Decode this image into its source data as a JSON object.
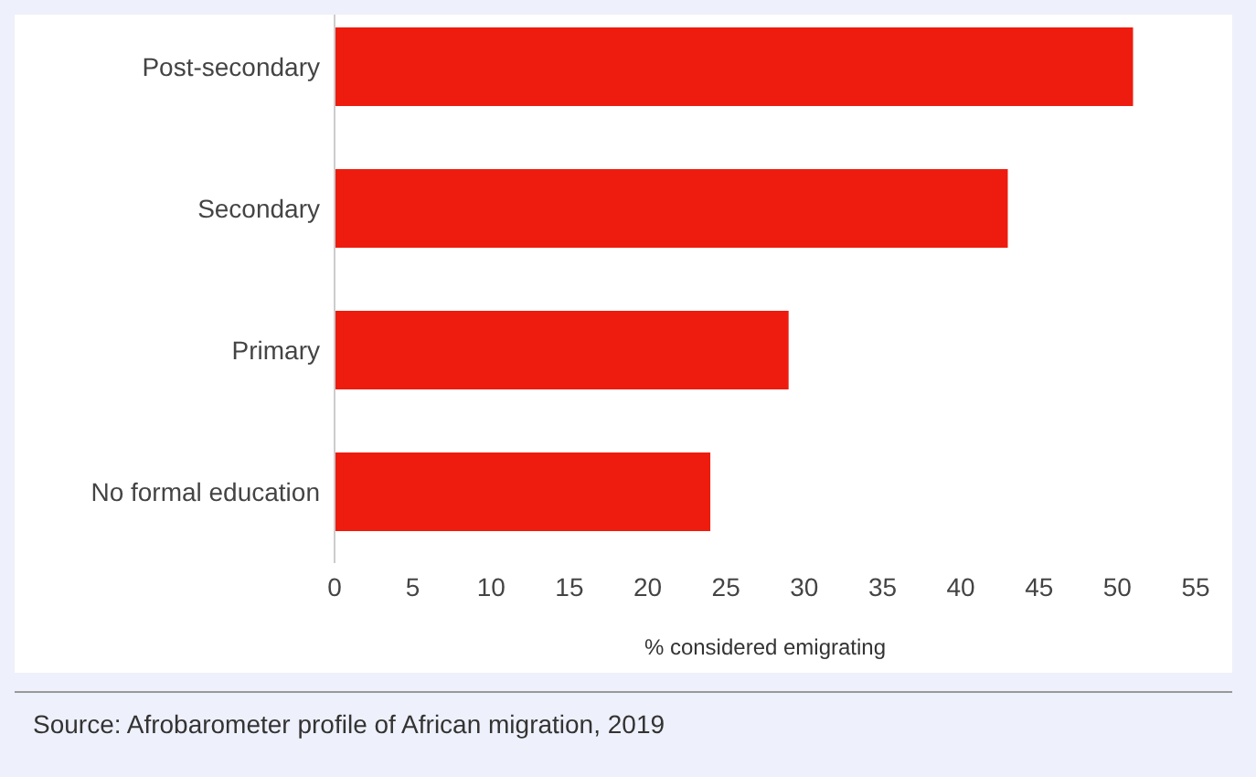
{
  "chart_data": {
    "type": "bar",
    "orientation": "horizontal",
    "categories": [
      "Post-secondary",
      "Secondary",
      "Primary",
      "No formal education"
    ],
    "values": [
      51,
      43,
      29,
      24
    ],
    "color": "#ee1c0e",
    "xlim": [
      0,
      55
    ],
    "xticks": [
      0,
      5,
      10,
      15,
      20,
      25,
      30,
      35,
      40,
      45,
      50,
      55
    ],
    "xlabel": "% considered emigrating",
    "annotations": [
      "Source: Afrobarometer profile of African migration, 2019"
    ]
  }
}
